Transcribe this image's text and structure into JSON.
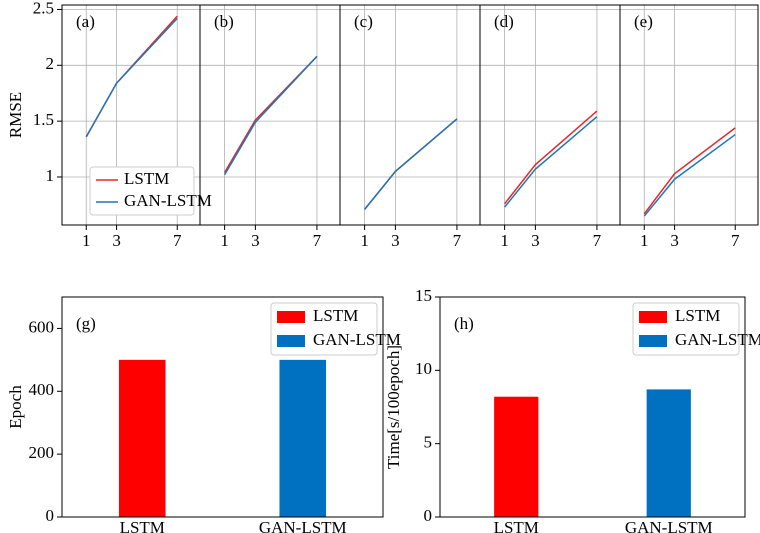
{
  "chart_data": [
    {
      "type": "line",
      "label": "(a)",
      "ylabel": "RMSE",
      "x": [
        1,
        3,
        7
      ],
      "xlim": [
        -0.6,
        8.5
      ],
      "xticks": [
        1,
        3,
        7
      ],
      "ylim": [
        0.57,
        2.54
      ],
      "yticks": [
        1.0,
        1.5,
        2.0,
        2.5
      ],
      "grid": true,
      "legend": "lower left",
      "series": [
        {
          "name": "LSTM",
          "color": "#e8282a",
          "values": [
            1.36,
            1.84,
            2.44
          ]
        },
        {
          "name": "GAN-LSTM",
          "color": "#1f77b4",
          "values": [
            1.36,
            1.84,
            2.42
          ]
        }
      ]
    },
    {
      "type": "line",
      "label": "(b)",
      "x": [
        1,
        3,
        7
      ],
      "xlim": [
        -0.6,
        8.5
      ],
      "xticks": [
        1,
        3,
        7
      ],
      "ylim": [
        0.57,
        2.54
      ],
      "yticks": [
        1.0,
        1.5,
        2.0,
        2.5
      ],
      "grid": true,
      "series": [
        {
          "color": "#e8282a",
          "values": [
            1.04,
            1.51,
            2.08
          ]
        },
        {
          "color": "#1f77b4",
          "values": [
            1.02,
            1.49,
            2.08
          ]
        }
      ]
    },
    {
      "type": "line",
      "label": "(c)",
      "x": [
        1,
        3,
        7
      ],
      "xlim": [
        -0.6,
        8.5
      ],
      "xticks": [
        1,
        3,
        7
      ],
      "ylim": [
        0.57,
        2.54
      ],
      "yticks": [
        1.0,
        1.5,
        2.0,
        2.5
      ],
      "grid": true,
      "series": [
        {
          "color": "#e8282a",
          "values": [
            0.71,
            1.05,
            1.52
          ]
        },
        {
          "color": "#1f77b4",
          "values": [
            0.71,
            1.05,
            1.52
          ]
        }
      ]
    },
    {
      "type": "line",
      "label": "(d)",
      "x": [
        1,
        3,
        7
      ],
      "xlim": [
        -0.6,
        8.5
      ],
      "xticks": [
        1,
        3,
        7
      ],
      "ylim": [
        0.57,
        2.54
      ],
      "yticks": [
        1.0,
        1.5,
        2.0,
        2.5
      ],
      "grid": true,
      "series": [
        {
          "color": "#e8282a",
          "values": [
            0.76,
            1.11,
            1.59
          ]
        },
        {
          "color": "#1f77b4",
          "values": [
            0.73,
            1.07,
            1.54
          ]
        }
      ]
    },
    {
      "type": "line",
      "label": "(e)",
      "x": [
        1,
        3,
        7
      ],
      "xlim": [
        -0.6,
        8.5
      ],
      "xticks": [
        1,
        3,
        7
      ],
      "ylim": [
        0.57,
        2.54
      ],
      "yticks": [
        1.0,
        1.5,
        2.0,
        2.5
      ],
      "grid": true,
      "series": [
        {
          "color": "#e8282a",
          "values": [
            0.67,
            1.03,
            1.44
          ]
        },
        {
          "color": "#1f77b4",
          "values": [
            0.65,
            0.98,
            1.38
          ]
        }
      ]
    },
    {
      "type": "bar",
      "label": "(g)",
      "ylabel": "Epoch",
      "categories": [
        "LSTM",
        "GAN-LSTM"
      ],
      "values": [
        500,
        500
      ],
      "colors": [
        "#ff0000",
        "#0070c0"
      ],
      "ylim": [
        0,
        700
      ],
      "yticks": [
        0,
        200,
        400,
        600
      ],
      "legend": "upper right"
    },
    {
      "type": "bar",
      "label": "(h)",
      "ylabel": "Time[s/100epoch]",
      "categories": [
        "LSTM",
        "GAN-LSTM"
      ],
      "values": [
        8.2,
        8.7
      ],
      "colors": [
        "#ff0000",
        "#0070c0"
      ],
      "ylim": [
        0,
        15
      ],
      "yticks": [
        0,
        5,
        10,
        15
      ],
      "legend": "upper right"
    }
  ]
}
